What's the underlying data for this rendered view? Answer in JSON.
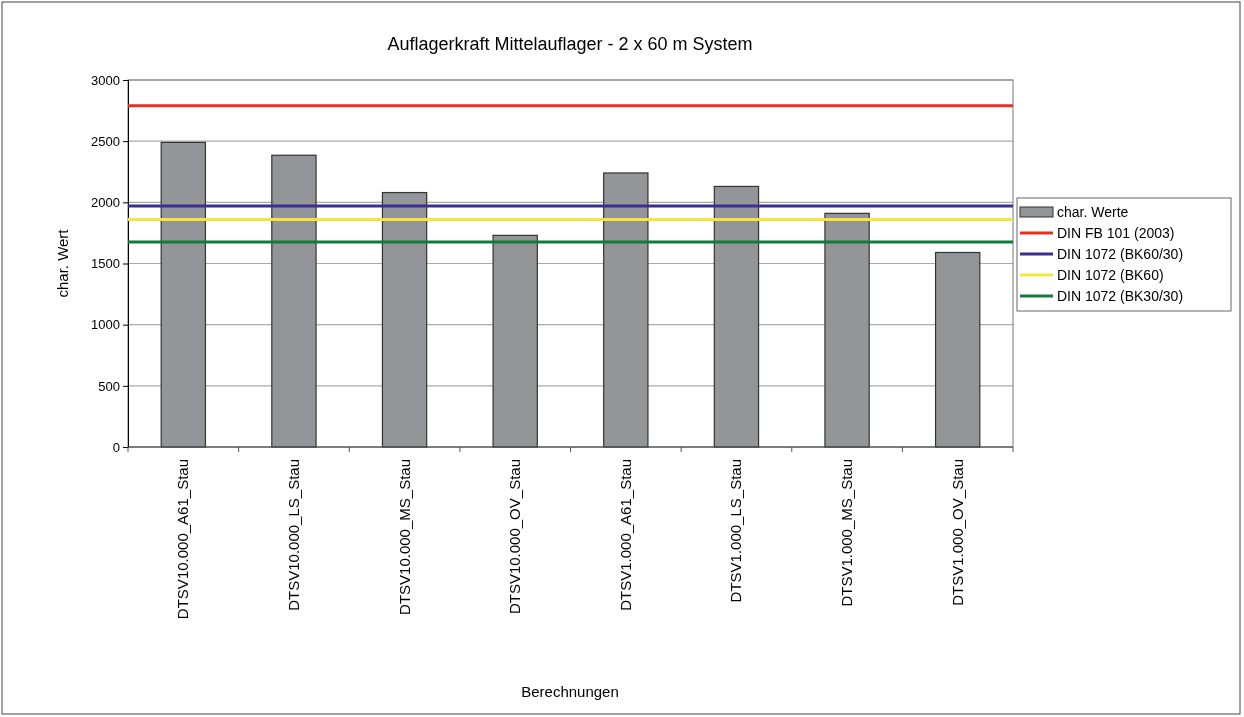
{
  "chart_data": {
    "type": "bar",
    "title": "Auflagerkraft Mittelauflager - 2 x 60 m System",
    "xlabel": "Berechnungen",
    "ylabel": "char. Wert",
    "categories": [
      "DTSV10.000_A61_Stau",
      "DTSV10.000_LS_Stau",
      "DTSV10.000_MS_Stau",
      "DTSV10.000_OV_Stau",
      "DTSV1.000_A61_Stau",
      "DTSV1.000_LS_Stau",
      "DTSV1.000_MS_Stau",
      "DTSV1.000_OV_Stau"
    ],
    "series": [
      {
        "name": "char. Werte",
        "color": "#939598",
        "values": [
          2490,
          2385,
          2080,
          1730,
          2240,
          2130,
          1910,
          1590
        ]
      }
    ],
    "ref_lines": [
      {
        "axis": "y",
        "value": 2790,
        "label": "DIN FB 101 (2003)",
        "color": "#e2321f"
      },
      {
        "axis": "y",
        "value": 1970,
        "label": "DIN 1072 (BK60/30)",
        "color": "#3a2f8f"
      },
      {
        "axis": "y",
        "value": 1860,
        "label": "DIN 1072 (BK60)",
        "color": "#f5e63c"
      },
      {
        "axis": "y",
        "value": 1675,
        "label": "DIN 1072 (BK30/30)",
        "color": "#137a3a"
      }
    ],
    "ylim": [
      0,
      3000
    ],
    "yticks": [
      0,
      500,
      1000,
      1500,
      2000,
      2500,
      3000
    ],
    "grid": "y",
    "legend": "right"
  }
}
